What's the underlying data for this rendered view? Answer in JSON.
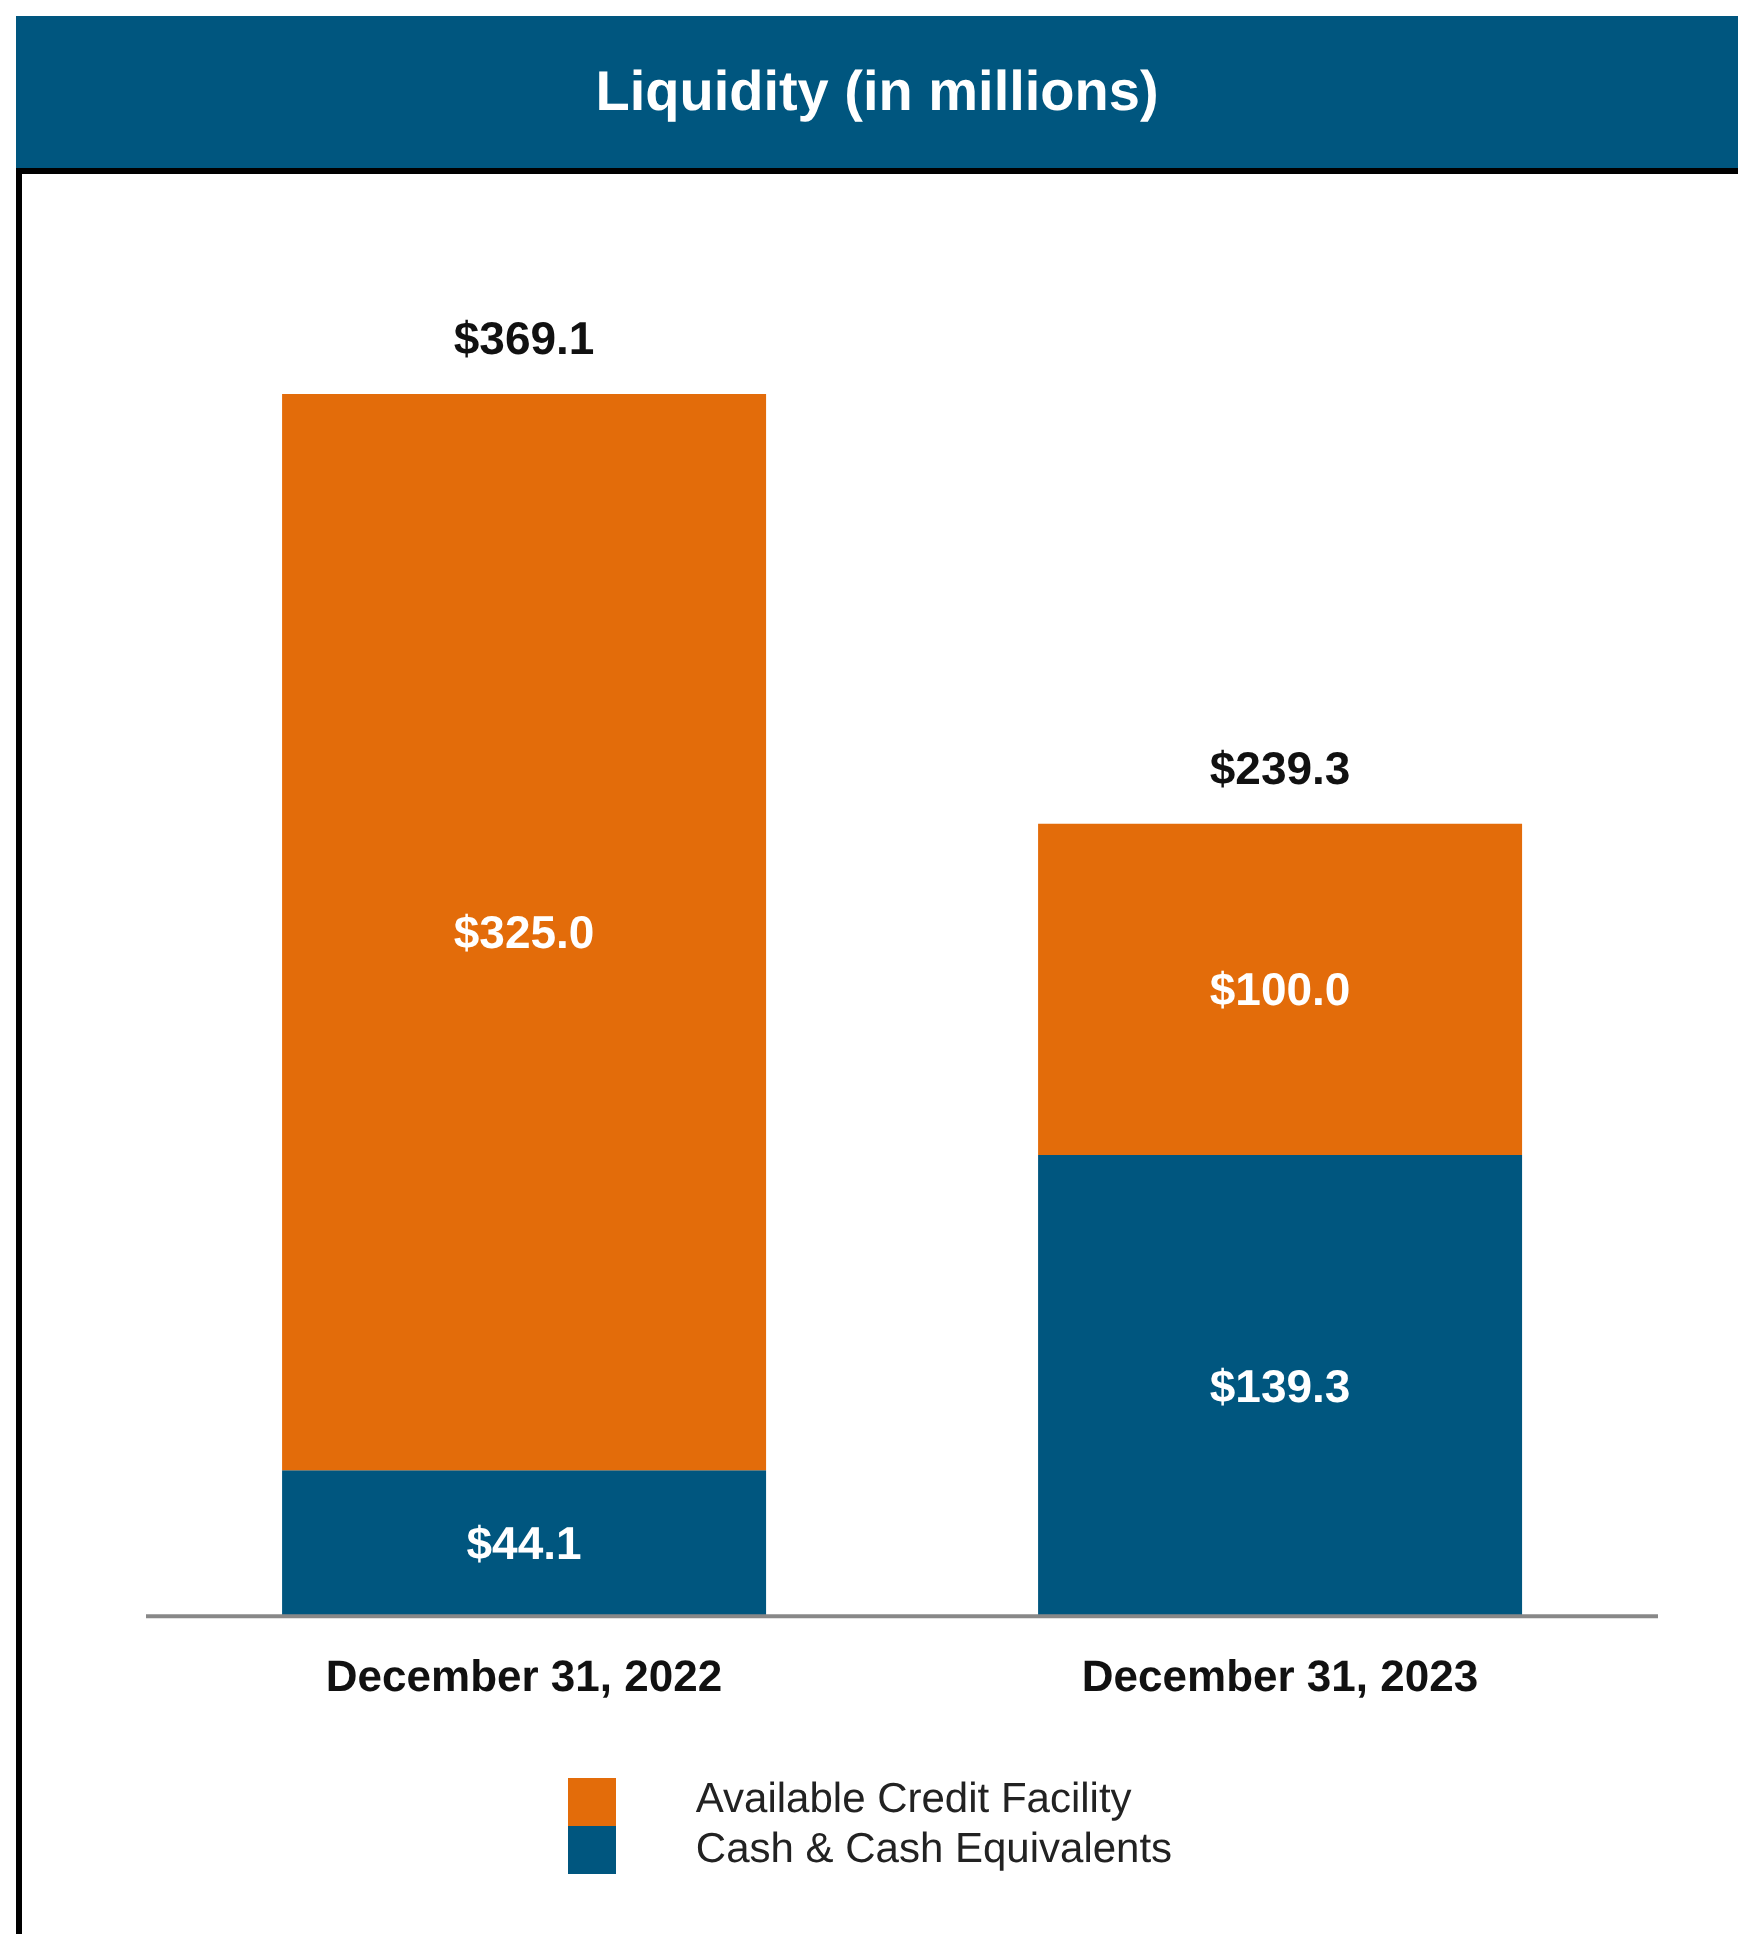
{
  "chart_data": {
    "type": "bar",
    "title": "Liquidity (in millions)",
    "categories": [
      "December 31, 2022",
      "December 31, 2023"
    ],
    "stacked": true,
    "series": [
      {
        "name": "Cash & Cash Equivalents",
        "color": "#00567f",
        "values": [
          44.1,
          139.3
        ],
        "value_labels": [
          "$44.1",
          "$139.3"
        ]
      },
      {
        "name": "Available Credit Facility",
        "color": "#e36c0a",
        "values": [
          325.0,
          100.0
        ],
        "value_labels": [
          "$325.0",
          "$100.0"
        ]
      }
    ],
    "totals": [
      "$369.1",
      "$239.3"
    ],
    "legend": "bottom",
    "grid": false
  }
}
